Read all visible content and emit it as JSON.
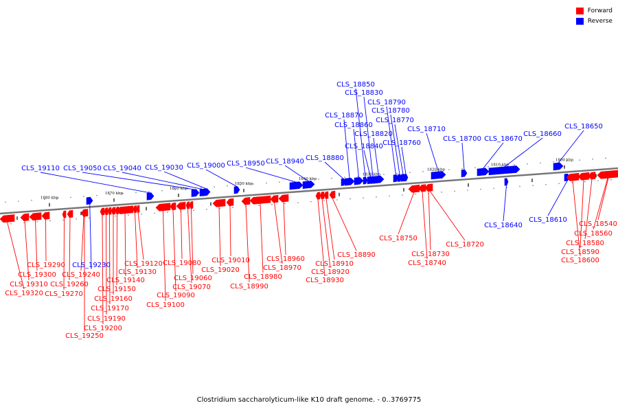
{
  "caption": "Clostridium saccharolyticum-like K10 draft genome. - 0..3769775",
  "legend": [
    {
      "label": "Forward",
      "color": "#ff0000"
    },
    {
      "label": "Reverse",
      "color": "#0000ff"
    }
  ],
  "colors": {
    "forward": "#ff0000",
    "reverse": "#0000ff",
    "backbone": "#777777"
  },
  "genome_axis": {
    "tick_labels": [
      "1880 kbp",
      "1870 kbp",
      "1860 kbp",
      "1850 kbp",
      "1840 kbp",
      "1830 kbp",
      "1820 kbp",
      "1810 kbp",
      "1800 kbp"
    ]
  },
  "genes": [
    {
      "id": "CLS_19320",
      "strand": "forward"
    },
    {
      "id": "CLS_19310",
      "strand": "forward"
    },
    {
      "id": "CLS_19300",
      "strand": "forward"
    },
    {
      "id": "CLS_19290",
      "strand": "forward"
    },
    {
      "id": "CLS_19270",
      "strand": "forward"
    },
    {
      "id": "CLS_19260",
      "strand": "forward"
    },
    {
      "id": "CLS_19250",
      "strand": "forward"
    },
    {
      "id": "CLS_19240",
      "strand": "forward"
    },
    {
      "id": "CLS_19230",
      "strand": "reverse"
    },
    {
      "id": "CLS_19200",
      "strand": "forward"
    },
    {
      "id": "CLS_19190",
      "strand": "forward"
    },
    {
      "id": "CLS_19170",
      "strand": "forward"
    },
    {
      "id": "CLS_19160",
      "strand": "forward"
    },
    {
      "id": "CLS_19150",
      "strand": "forward"
    },
    {
      "id": "CLS_19140",
      "strand": "forward"
    },
    {
      "id": "CLS_19130",
      "strand": "forward"
    },
    {
      "id": "CLS_19120",
      "strand": "forward"
    },
    {
      "id": "CLS_19110",
      "strand": "reverse"
    },
    {
      "id": "CLS_19100",
      "strand": "forward"
    },
    {
      "id": "CLS_19090",
      "strand": "forward"
    },
    {
      "id": "CLS_19080",
      "strand": "forward"
    },
    {
      "id": "CLS_19070",
      "strand": "forward"
    },
    {
      "id": "CLS_19060",
      "strand": "forward"
    },
    {
      "id": "CLS_19050",
      "strand": "reverse"
    },
    {
      "id": "CLS_19040",
      "strand": "reverse"
    },
    {
      "id": "CLS_19030",
      "strand": "reverse"
    },
    {
      "id": "CLS_19020",
      "strand": "forward"
    },
    {
      "id": "CLS_19010",
      "strand": "forward"
    },
    {
      "id": "CLS_19000",
      "strand": "reverse"
    },
    {
      "id": "CLS_18990",
      "strand": "forward"
    },
    {
      "id": "CLS_18980",
      "strand": "forward"
    },
    {
      "id": "CLS_18970",
      "strand": "forward"
    },
    {
      "id": "CLS_18960",
      "strand": "forward"
    },
    {
      "id": "CLS_18950",
      "strand": "reverse"
    },
    {
      "id": "CLS_18940",
      "strand": "reverse"
    },
    {
      "id": "CLS_18930",
      "strand": "forward"
    },
    {
      "id": "CLS_18920",
      "strand": "forward"
    },
    {
      "id": "CLS_18910",
      "strand": "forward"
    },
    {
      "id": "CLS_18890",
      "strand": "forward"
    },
    {
      "id": "CLS_18880",
      "strand": "reverse"
    },
    {
      "id": "CLS_18870",
      "strand": "reverse"
    },
    {
      "id": "CLS_18860",
      "strand": "reverse"
    },
    {
      "id": "CLS_18850",
      "strand": "reverse"
    },
    {
      "id": "CLS_18840",
      "strand": "reverse"
    },
    {
      "id": "CLS_18830",
      "strand": "reverse"
    },
    {
      "id": "CLS_18820",
      "strand": "reverse"
    },
    {
      "id": "CLS_18790",
      "strand": "reverse"
    },
    {
      "id": "CLS_18780",
      "strand": "reverse"
    },
    {
      "id": "CLS_18770",
      "strand": "reverse"
    },
    {
      "id": "CLS_18760",
      "strand": "reverse"
    },
    {
      "id": "CLS_18750",
      "strand": "forward"
    },
    {
      "id": "CLS_18740",
      "strand": "forward"
    },
    {
      "id": "CLS_18730",
      "strand": "forward"
    },
    {
      "id": "CLS_18720",
      "strand": "forward"
    },
    {
      "id": "CLS_18710",
      "strand": "reverse"
    },
    {
      "id": "CLS_18700",
      "strand": "reverse"
    },
    {
      "id": "CLS_18670",
      "strand": "reverse"
    },
    {
      "id": "CLS_18660",
      "strand": "reverse"
    },
    {
      "id": "CLS_18650",
      "strand": "reverse"
    },
    {
      "id": "CLS_18640",
      "strand": "reverse"
    },
    {
      "id": "CLS_18610",
      "strand": "reverse"
    },
    {
      "id": "CLS_18600",
      "strand": "forward"
    },
    {
      "id": "CLS_18590",
      "strand": "forward"
    },
    {
      "id": "CLS_18580",
      "strand": "forward"
    },
    {
      "id": "CLS_18560",
      "strand": "forward"
    },
    {
      "id": "CLS_18540",
      "strand": "forward"
    }
  ]
}
